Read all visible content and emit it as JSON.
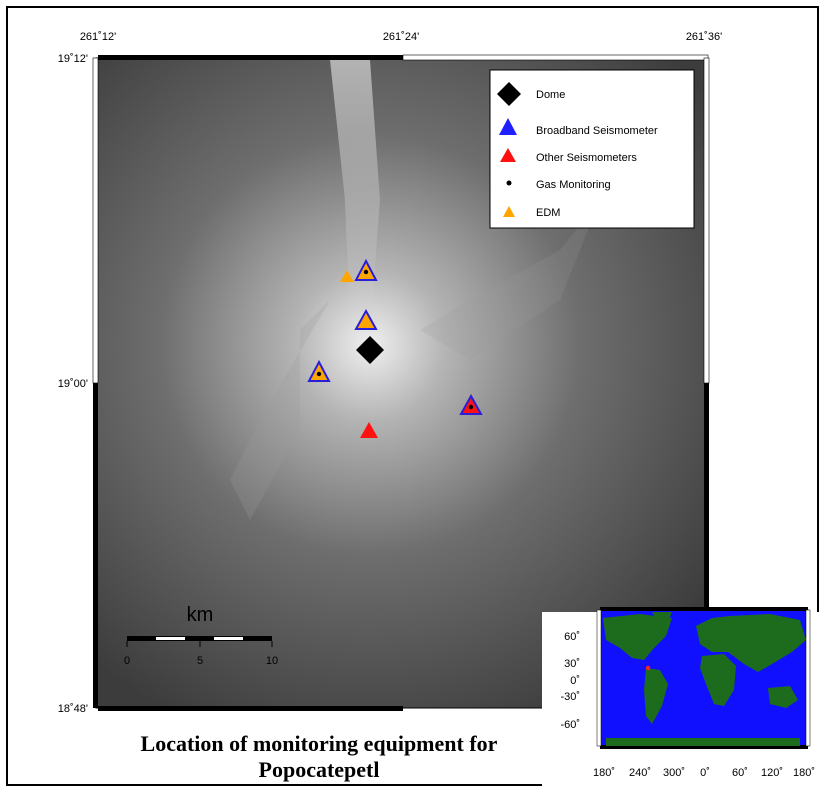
{
  "map": {
    "lon_labels": [
      "261˚12'",
      "261˚24'",
      "261˚36'"
    ],
    "lat_labels": [
      "19˚12'",
      "19˚00'",
      "18˚48'"
    ],
    "legend": {
      "items": [
        {
          "label": "Dome",
          "symbol": "diamond",
          "color": "#000000"
        },
        {
          "label": "Broadband Seismometer",
          "symbol": "triangle",
          "color": "#1f1fff"
        },
        {
          "label": "Other Seismometers",
          "symbol": "triangle",
          "color": "#ff1111"
        },
        {
          "label": "Gas Monitoring",
          "symbol": "dot",
          "color": "#000000"
        },
        {
          "label": "EDM",
          "symbol": "triangle",
          "color": "#ffa500"
        }
      ]
    },
    "scale_bar": {
      "unit": "km",
      "ticks": [
        "0",
        "5",
        "10"
      ]
    },
    "caption_line1": "Location of monitoring equipment for",
    "caption_line2": "Popocatepetl",
    "colors": {
      "terrain_dark": "#3a3a3a",
      "terrain_light": "#f2f2f2",
      "broadband": "#1f1fff",
      "other_seismometer": "#ff1111",
      "edm": "#ffa500",
      "ocean": "#1010ff",
      "land": "#1d6b1d"
    }
  },
  "inset": {
    "lat_labels": [
      "60˚",
      "30˚",
      "0˚",
      "-30˚",
      "-60˚"
    ],
    "lon_labels": [
      "180˚",
      "240˚",
      "300˚",
      "0˚",
      "60˚",
      "120˚",
      "180˚"
    ]
  }
}
